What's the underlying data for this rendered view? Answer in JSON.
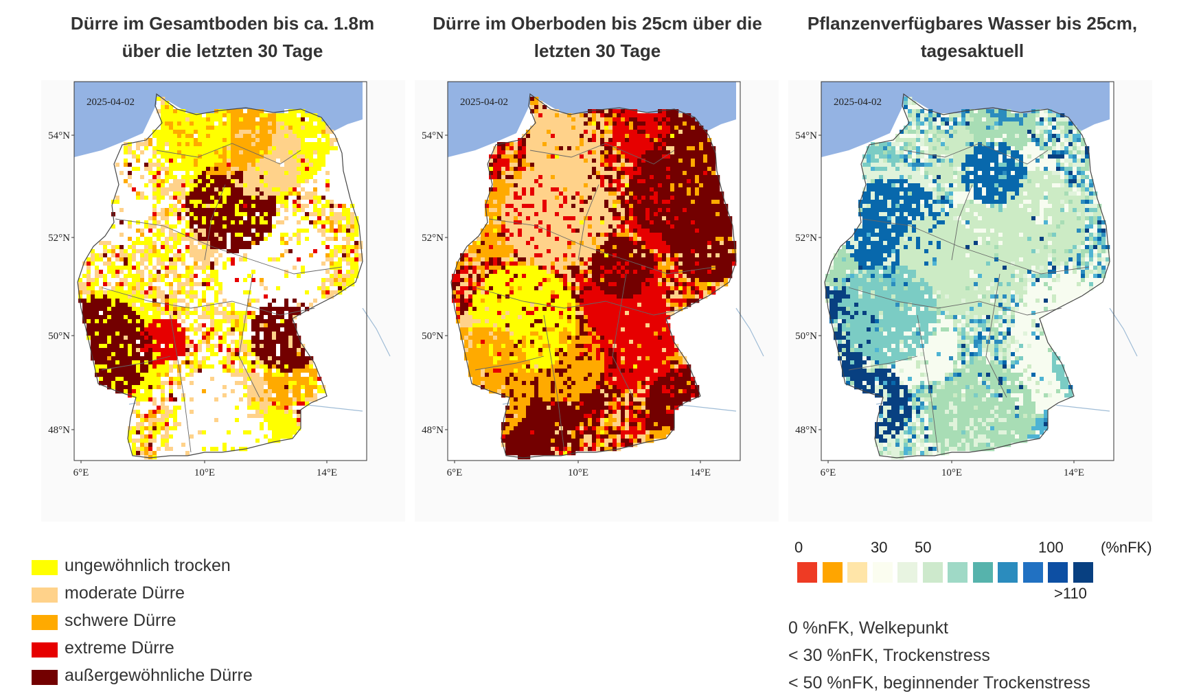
{
  "maps": [
    {
      "title_line1": "Dürre im Gesamtboden bis ca. 1.8m",
      "title_line2": "über die letzten 30 Tage",
      "date": "2025-04-02",
      "dominant_class": "ungewöhnlich trocken",
      "palette": [
        "#ffffff",
        "#ffff00",
        "#ffd28a",
        "#ffaa00",
        "#e60000",
        "#730000"
      ],
      "weights": [
        30,
        30,
        26,
        6,
        5,
        3
      ]
    },
    {
      "title_line1": "Dürre im Oberboden bis 25cm über die",
      "title_line2": "letzten 30 Tage",
      "date": "2025-04-02",
      "dominant_class": "außergewöhnliche Dürre",
      "palette": [
        "#ffff00",
        "#ffd28a",
        "#ffaa00",
        "#e60000",
        "#730000"
      ],
      "weights": [
        2,
        22,
        26,
        24,
        26
      ]
    },
    {
      "title_line1": "Pflanzenverfügbares Wasser bis 25cm,",
      "title_line2": "tagesaktuell",
      "date": "2025-04-02",
      "dominant_class": "50–100 %nFK",
      "palette": [
        "#f7fcf0",
        "#e0f3db",
        "#ccebc5",
        "#a8ddb5",
        "#7bccc4",
        "#4eb3d3",
        "#2b8cbe",
        "#0868ac",
        "#084081"
      ],
      "weights": [
        16,
        16,
        18,
        14,
        10,
        9,
        7,
        6,
        4
      ]
    }
  ],
  "axes": {
    "lat_labels": [
      "54°N",
      "52°N",
      "50°N",
      "48°N"
    ],
    "lon_labels": [
      "6°E",
      "10°E",
      "14°E"
    ]
  },
  "colors": {
    "sea": "#94b3e3",
    "border": "#444444",
    "river": "#9fbcd6",
    "neighbor_bg": "#ffffff"
  },
  "drought_legend": {
    "items": [
      {
        "label": "ungewöhnlich trocken",
        "color": "#ffff00"
      },
      {
        "label": "moderate Dürre",
        "color": "#ffd28a"
      },
      {
        "label": "schwere Dürre",
        "color": "#ffaa00"
      },
      {
        "label": "extreme Dürre",
        "color": "#e60000"
      },
      {
        "label": "außergewöhnliche Dürre",
        "color": "#730000"
      }
    ]
  },
  "water_colorbar": {
    "ticks": [
      "0",
      "30",
      "50",
      "100"
    ],
    "unit": "(%nFK)",
    "max_label": ">110",
    "colors": [
      "#ee3b24",
      "#ffa500",
      "#ffe5a8",
      "#fbfdf0",
      "#e8f4e1",
      "#cde9cc",
      "#9fd9c6",
      "#56b3ac",
      "#2b8cbe",
      "#2171c2",
      "#0d4fa3",
      "#084081"
    ]
  },
  "notes": [
    "0 %nFK, Welkepunkt",
    "< 30 %nFK, Trockenstress",
    "< 50 %nFK, beginnender Trockenstress"
  ]
}
